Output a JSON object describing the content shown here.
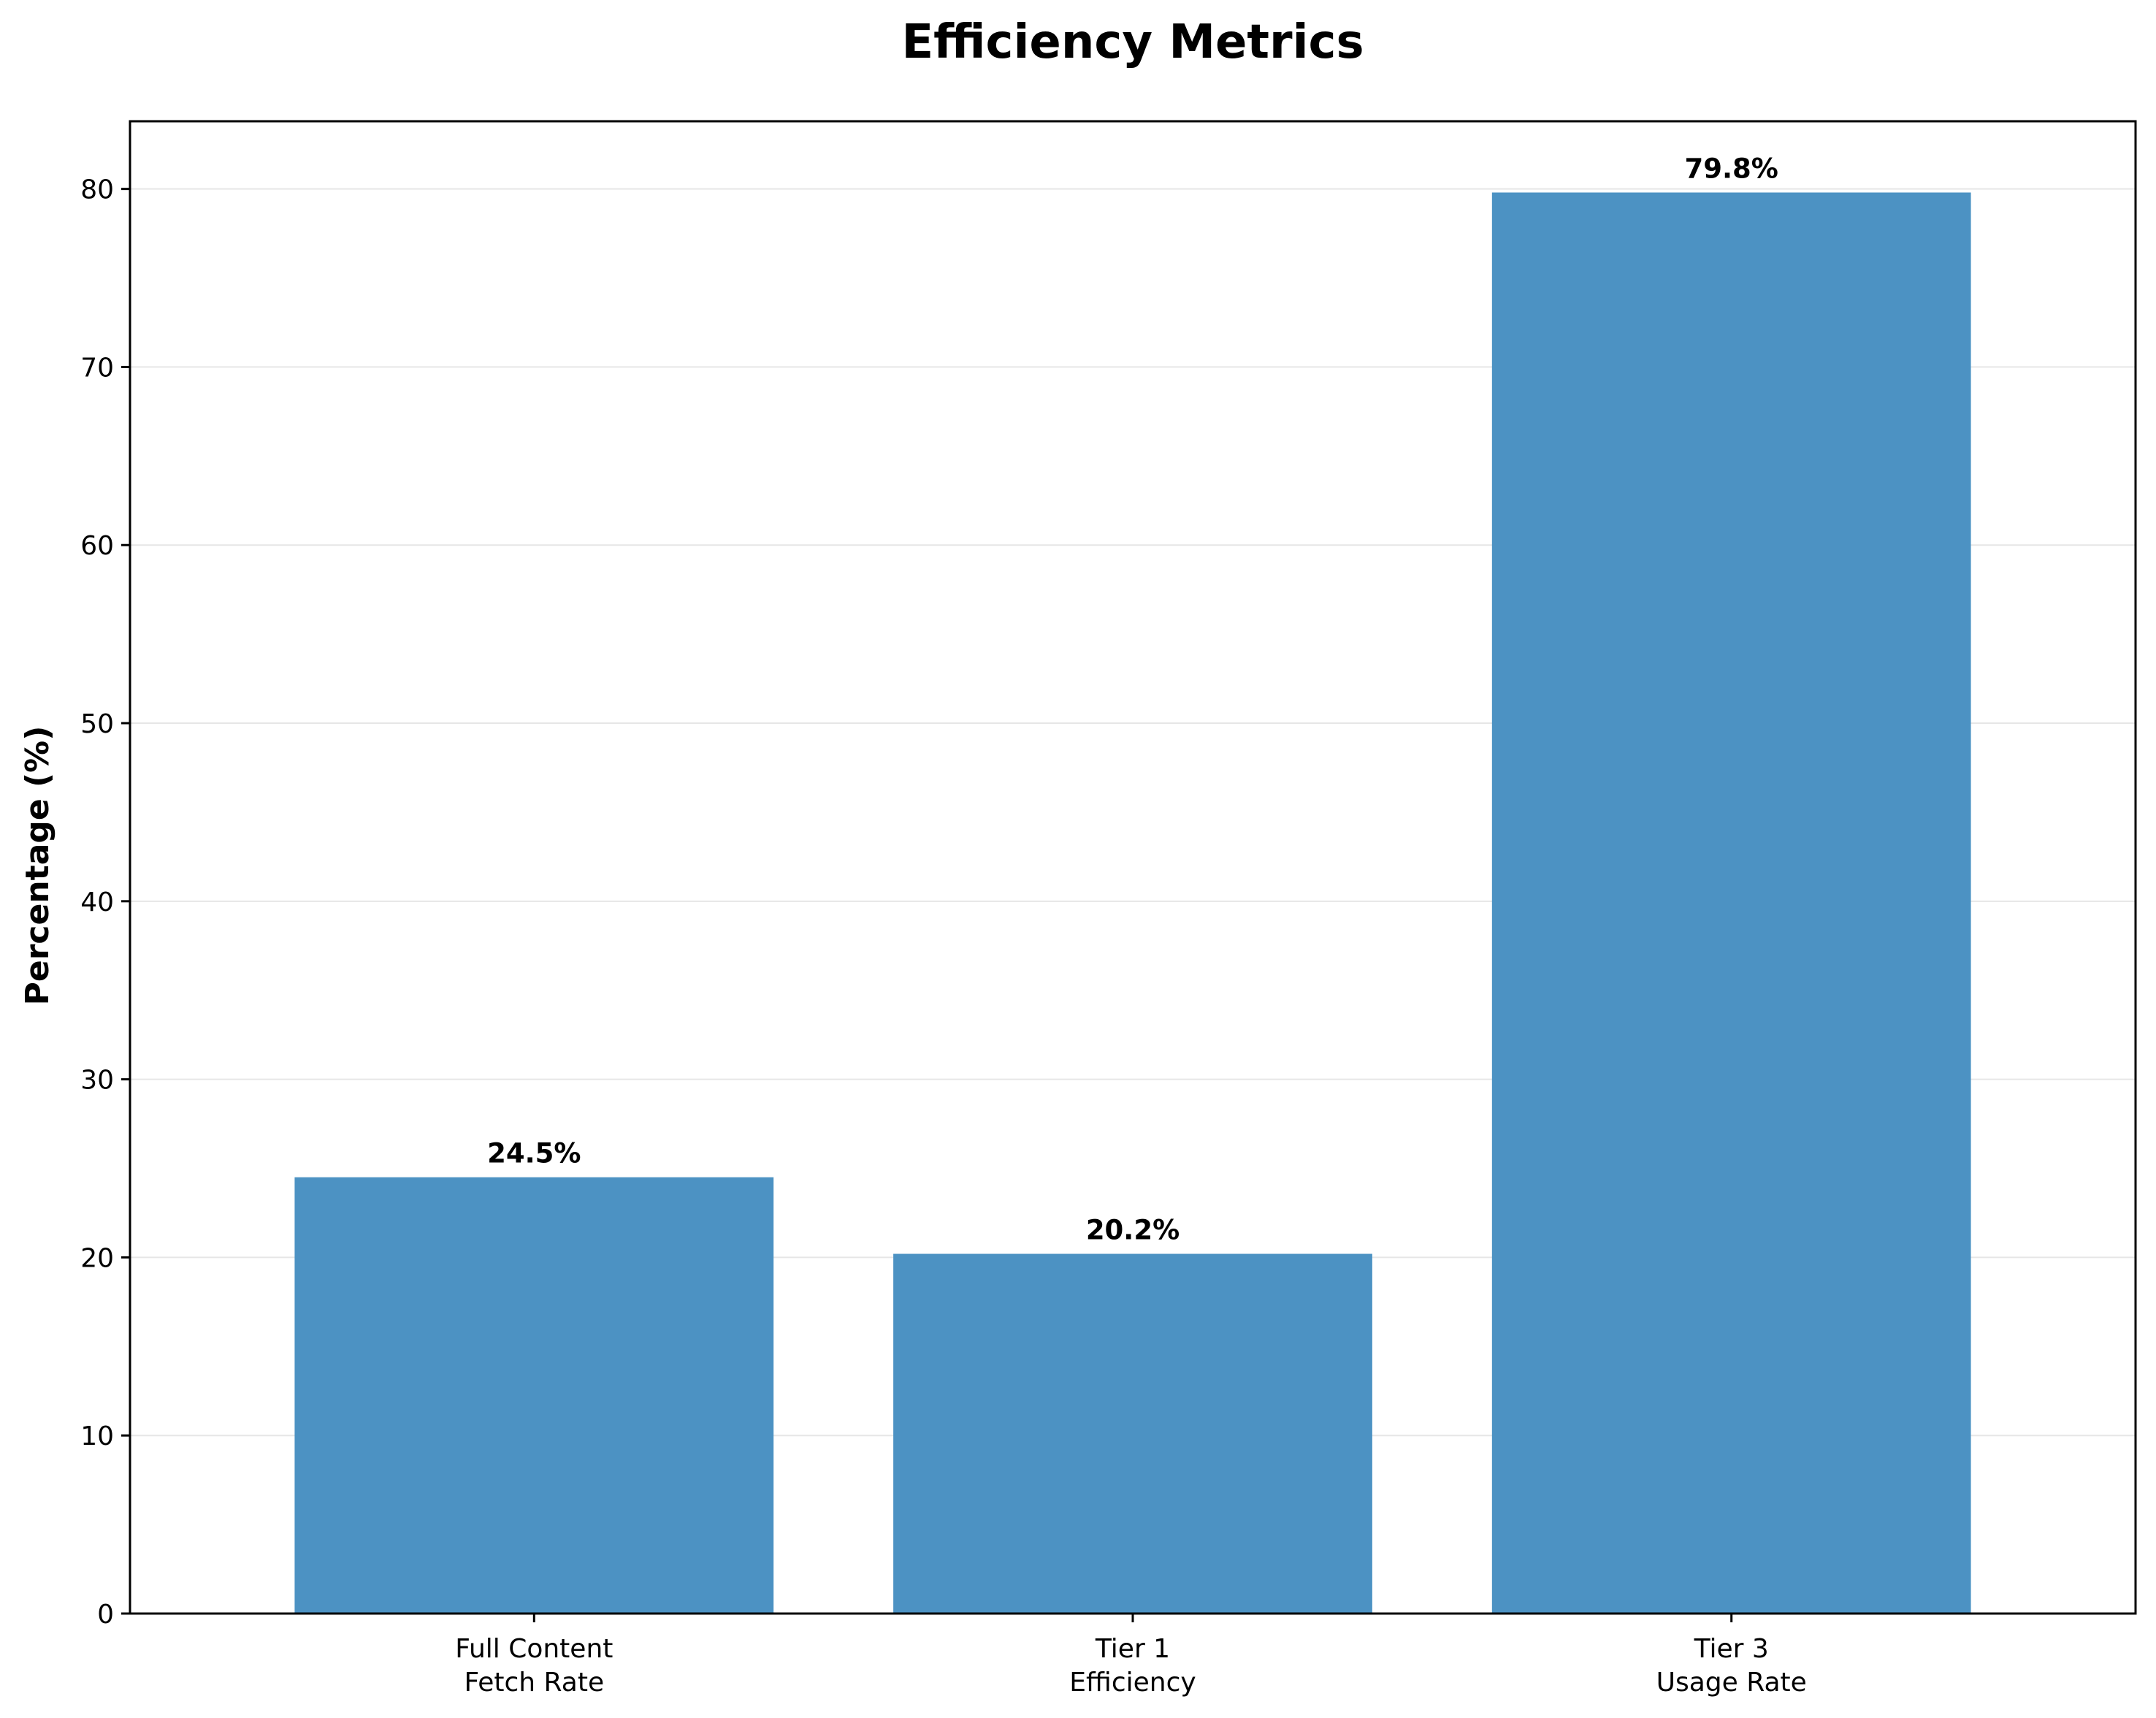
{
  "chart_data": {
    "type": "bar",
    "title": "Efficiency Metrics",
    "xlabel": "",
    "ylabel": "Percentage (%)",
    "categories": [
      [
        "Full Content",
        "Fetch Rate"
      ],
      [
        "Tier 1",
        "Efficiency"
      ],
      [
        "Tier 3",
        "Usage Rate"
      ]
    ],
    "values": [
      24.5,
      20.2,
      79.8
    ],
    "data_labels": [
      "24.5%",
      "20.2%",
      "79.8%"
    ],
    "ylim": [
      0,
      83.8
    ],
    "yticks": [
      0,
      10,
      20,
      30,
      40,
      50,
      60,
      70,
      80
    ],
    "ytick_labels": [
      "0",
      "10",
      "20",
      "30",
      "40",
      "50",
      "60",
      "70",
      "80"
    ],
    "grid": "y",
    "bar_color": "#4c92c3",
    "grid_color": "#e6e6e6",
    "axis_color": "#000000"
  }
}
